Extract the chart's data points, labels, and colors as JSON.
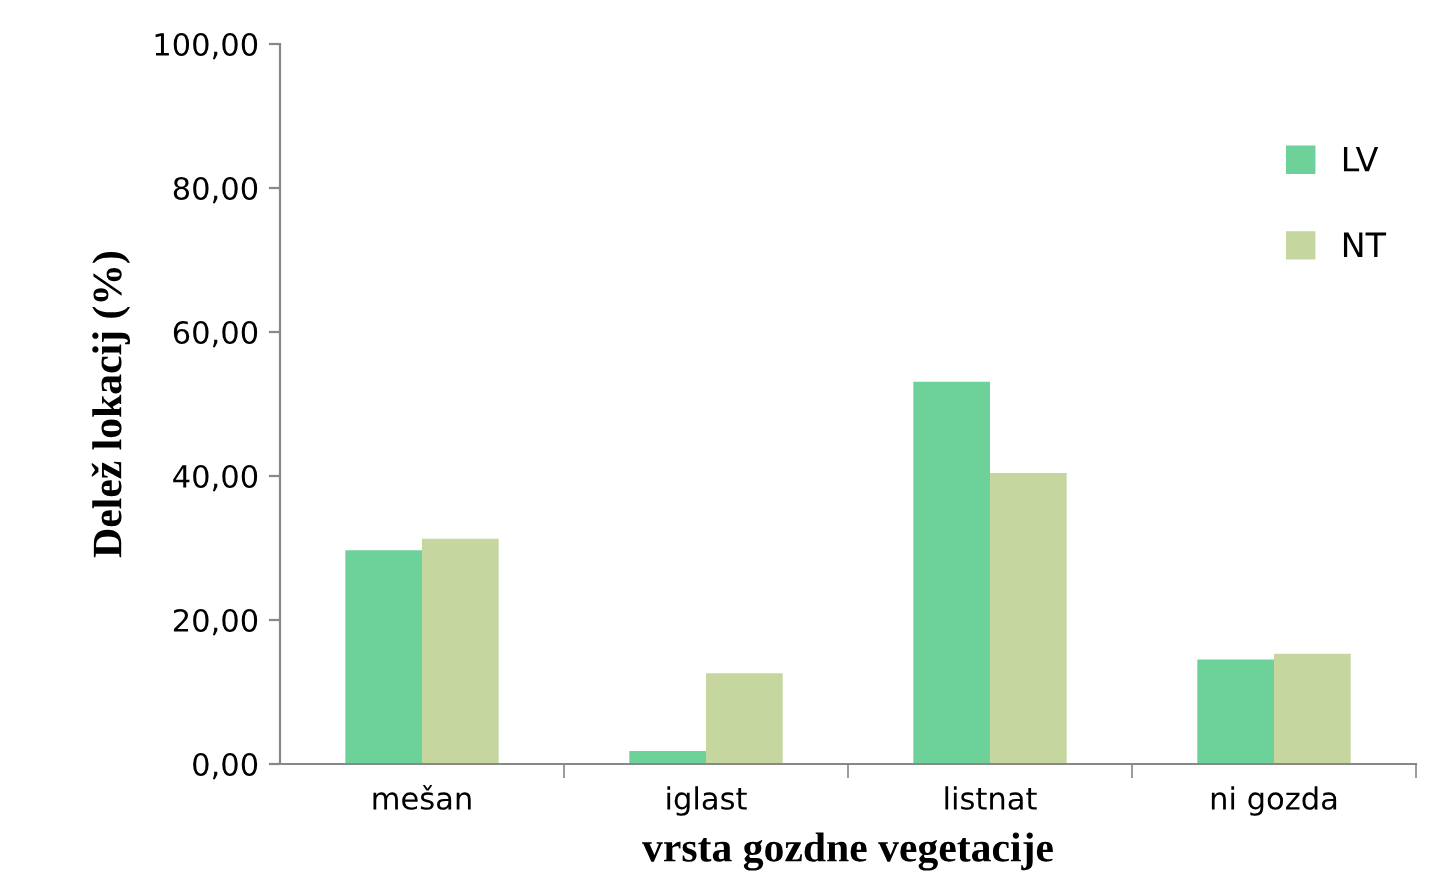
{
  "chart_data": {
    "type": "bar",
    "xlabel": "vrsta gozdne vegetacije",
    "ylabel": "Delež lokacij (%)",
    "categories": [
      "mešan",
      "iglast",
      "listnat",
      "ni gozda"
    ],
    "series": [
      {
        "name": "LV",
        "color": "#6dd19a",
        "values": [
          29.7,
          1.8,
          53.1,
          14.5
        ]
      },
      {
        "name": "NT",
        "color": "#c5d69e",
        "values": [
          31.3,
          12.6,
          40.4,
          15.3
        ]
      }
    ],
    "ylim": [
      0,
      100
    ],
    "yticks": [
      {
        "value": 0,
        "label": "0,00"
      },
      {
        "value": 20,
        "label": "20,00"
      },
      {
        "value": 40,
        "label": "40,00"
      },
      {
        "value": 60,
        "label": "60,00"
      },
      {
        "value": 80,
        "label": "80,00"
      },
      {
        "value": 100,
        "label": "100,00"
      }
    ],
    "grid": false,
    "legend": "top right"
  }
}
